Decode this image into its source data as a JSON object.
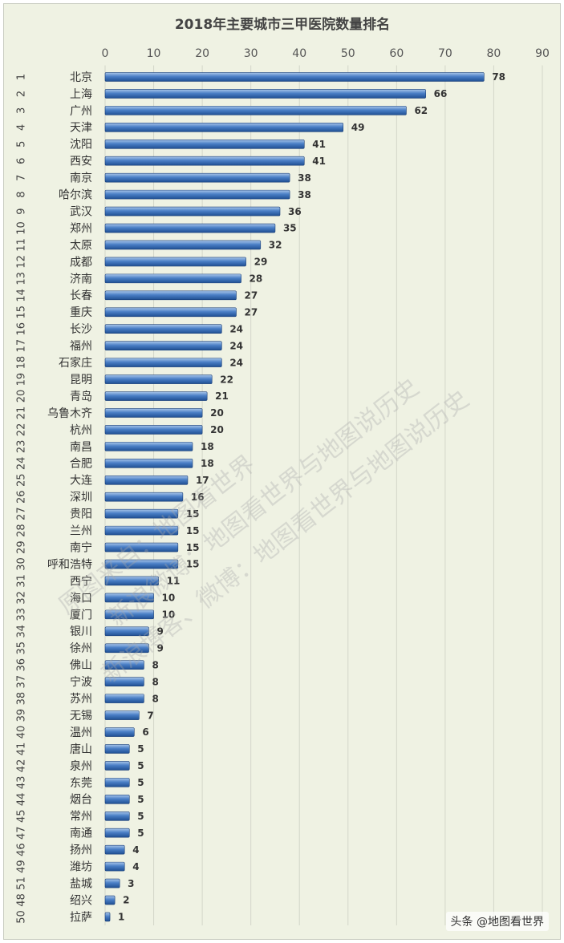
{
  "credit": "头条 @地图看世界",
  "watermarks": [
    "原图来自：地图看世界",
    "新浪微博：地图看世界与地图说历史",
    "新浪博客、微博：地图看世界与地图说历史"
  ],
  "colors": {
    "bar": "#4a7fc6",
    "bar_light": "#a9c6ea",
    "bar_dark": "#1f4f93",
    "background": "#eff2e3",
    "grid": "#d3d6c9"
  },
  "chart_data": {
    "type": "bar",
    "orientation": "horizontal",
    "title": "2018年主要城市三甲医院数量排名",
    "xlim": [
      0,
      90
    ],
    "x_ticks": [
      0,
      10,
      20,
      30,
      40,
      50,
      60,
      70,
      80,
      90
    ],
    "x_axis_position": "top",
    "grid": true,
    "ranks": [
      "1",
      "2",
      "3",
      "4",
      "5",
      "6",
      "7",
      "8",
      "9",
      "10",
      "11",
      "12",
      "13",
      "14",
      "15",
      "16",
      "17",
      "18",
      "19",
      "20",
      "21",
      "22",
      "23",
      "24",
      "25",
      "26",
      "27",
      "28",
      "29",
      "30",
      "31",
      "32",
      "33",
      "34",
      "35",
      "36",
      "37",
      "38",
      "39",
      "40",
      "41",
      "42",
      "43",
      "44",
      "45",
      "47",
      "46",
      "49",
      "51",
      "48",
      "50"
    ],
    "categories": [
      "北京",
      "上海",
      "广州",
      "天津",
      "沈阳",
      "西安",
      "南京",
      "哈尔滨",
      "武汉",
      "郑州",
      "太原",
      "成都",
      "济南",
      "长春",
      "重庆",
      "长沙",
      "福州",
      "石家庄",
      "昆明",
      "青岛",
      "乌鲁木齐",
      "杭州",
      "南昌",
      "合肥",
      "大连",
      "深圳",
      "贵阳",
      "兰州",
      "南宁",
      "呼和浩特",
      "西宁",
      "海口",
      "厦门",
      "银川",
      "徐州",
      "佛山",
      "宁波",
      "苏州",
      "无锡",
      "温州",
      "唐山",
      "泉州",
      "东莞",
      "烟台",
      "常州",
      "南通",
      "扬州",
      "潍坊",
      "盐城",
      "绍兴",
      "拉萨"
    ],
    "values": [
      78,
      66,
      62,
      49,
      41,
      41,
      38,
      38,
      36,
      35,
      32,
      29,
      28,
      27,
      27,
      24,
      24,
      24,
      22,
      21,
      20,
      20,
      18,
      18,
      17,
      16,
      15,
      15,
      15,
      15,
      11,
      10,
      10,
      9,
      9,
      8,
      8,
      8,
      7,
      6,
      5,
      5,
      5,
      5,
      5,
      5,
      4,
      4,
      3,
      2,
      1
    ]
  }
}
